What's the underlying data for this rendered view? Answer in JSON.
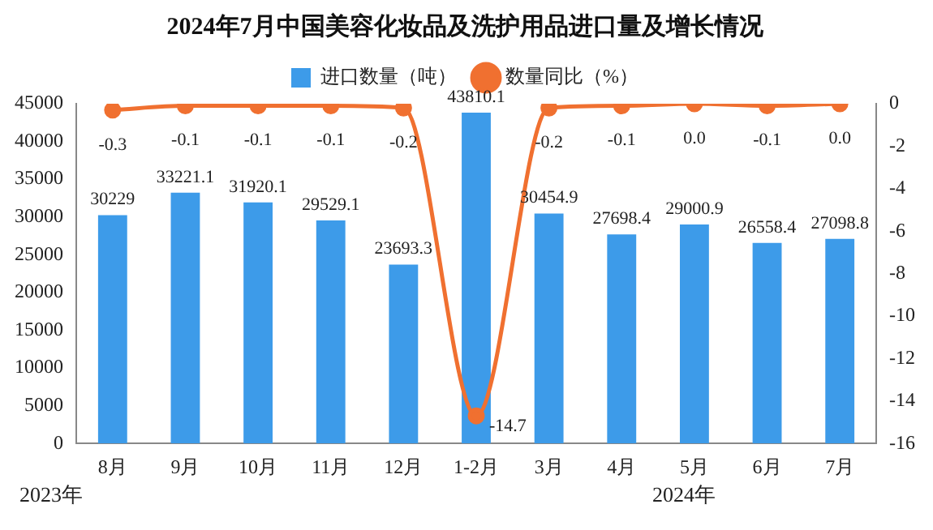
{
  "chart_data": {
    "type": "bar",
    "title": "2024年7月中国美容化妆品及洗护用品进口量及增长情况",
    "categories": [
      "8月",
      "9月",
      "10月",
      "11月",
      "12月",
      "1-2月",
      "3月",
      "4月",
      "5月",
      "6月",
      "7月"
    ],
    "series": [
      {
        "name": "进口数量（吨）",
        "color": "#3d9be9",
        "values": [
          30229,
          33221.1,
          31920.1,
          29529.1,
          23693.3,
          43810.1,
          30454.9,
          27698.4,
          29000.9,
          26558.4,
          27098.8
        ]
      },
      {
        "name": "数量同比（%）",
        "type": "line",
        "axis": "y2",
        "color": "#f07030",
        "values": [
          -0.3,
          -0.1,
          -0.1,
          -0.1,
          -0.2,
          -14.7,
          -0.2,
          -0.1,
          0.0,
          -0.1,
          0.0
        ],
        "value_labels": [
          "-0.3",
          "-0.1",
          "-0.1",
          "-0.1",
          "-0.2",
          "-14.7",
          "-0.2",
          "-0.1",
          "0.0",
          "-0.1",
          "0.0"
        ]
      }
    ],
    "ylim": [
      0,
      45000
    ],
    "yticks": [
      0,
      5000,
      10000,
      15000,
      20000,
      25000,
      30000,
      35000,
      40000,
      45000
    ],
    "y2lim": [
      -16,
      0
    ],
    "y2ticks": [
      -16,
      -14,
      -12,
      -10,
      -8,
      -6,
      -4,
      -2,
      0
    ],
    "data_labels": true,
    "grid": false,
    "legend": "top",
    "marker": "circle",
    "annotations": [
      "2023年",
      "2024年"
    ]
  }
}
